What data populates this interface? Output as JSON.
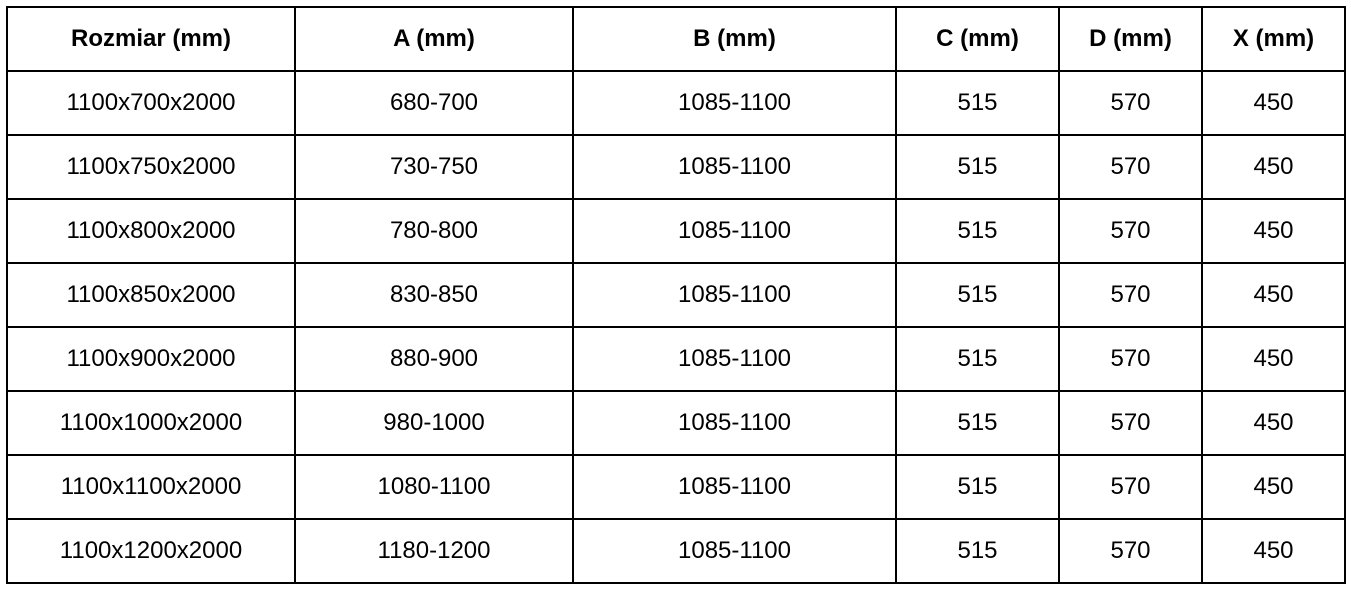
{
  "table": {
    "headers": [
      "Rozmiar (mm)",
      "A (mm)",
      "B (mm)",
      "C (mm)",
      "D (mm)",
      "X (mm)"
    ],
    "rows": [
      [
        "1100x700x2000",
        "680-700",
        "1085-1100",
        "515",
        "570",
        "450"
      ],
      [
        "1100x750x2000",
        "730-750",
        "1085-1100",
        "515",
        "570",
        "450"
      ],
      [
        "1100x800x2000",
        "780-800",
        "1085-1100",
        "515",
        "570",
        "450"
      ],
      [
        "1100x850x2000",
        "830-850",
        "1085-1100",
        "515",
        "570",
        "450"
      ],
      [
        "1100x900x2000",
        "880-900",
        "1085-1100",
        "515",
        "570",
        "450"
      ],
      [
        "1100x1000x2000",
        "980-1000",
        "1085-1100",
        "515",
        "570",
        "450"
      ],
      [
        "1100x1100x2000",
        "1080-1100",
        "1085-1100",
        "515",
        "570",
        "450"
      ],
      [
        "1100x1200x2000",
        "1180-1200",
        "1085-1100",
        "515",
        "570",
        "450"
      ]
    ]
  }
}
